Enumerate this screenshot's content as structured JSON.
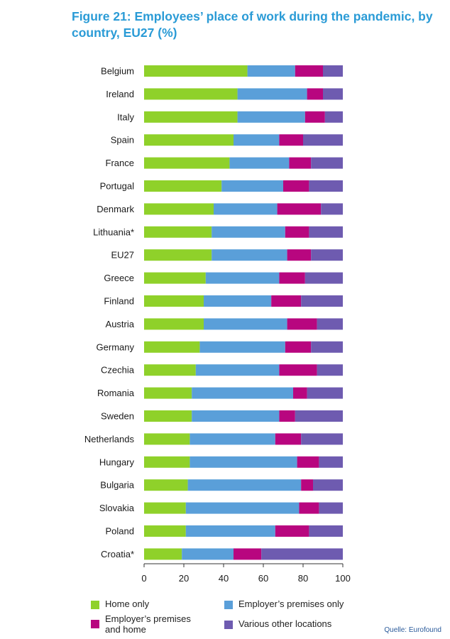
{
  "title": "Figure 21: Employees’ place of work during the pandemic, by country, EU27 (%)",
  "source": "Quelle: Eurofound",
  "colors": {
    "home_only": "#8fd12a",
    "employer_only": "#5a9fd9",
    "employer_and_home": "#b8067f",
    "other": "#6e5bb0",
    "axis": "#333333",
    "title": "#2a9bd6"
  },
  "legend": [
    {
      "key": "home_only",
      "label": "Home only"
    },
    {
      "key": "employer_only",
      "label": "Employer’s premises only"
    },
    {
      "key": "employer_and_home",
      "label": "Employer’s premises and home"
    },
    {
      "key": "other",
      "label": "Various other locations"
    }
  ],
  "chart_data": {
    "type": "bar",
    "orientation": "horizontal",
    "stacked": true,
    "title": "Figure 21: Employees’ place of work during the pandemic, by country, EU27 (%)",
    "xlim": [
      0,
      100
    ],
    "xticks": [
      0,
      20,
      40,
      60,
      80,
      100
    ],
    "grid": false,
    "legend_position": "bottom",
    "categories": [
      "Belgium",
      "Ireland",
      "Italy",
      "Spain",
      "France",
      "Portugal",
      "Denmark",
      "Lithuania*",
      "EU27",
      "Greece",
      "Finland",
      "Austria",
      "Germany",
      "Czechia",
      "Romania",
      "Sweden",
      "Netherlands",
      "Hungary",
      "Bulgaria",
      "Slovakia",
      "Poland",
      "Croatia*"
    ],
    "series": [
      {
        "name": "Home only",
        "key": "home_only",
        "values": [
          52,
          47,
          47,
          45,
          43,
          39,
          35,
          34,
          34,
          31,
          30,
          30,
          28,
          26,
          24,
          24,
          23,
          23,
          22,
          21,
          21,
          19
        ]
      },
      {
        "name": "Employer’s premises only",
        "key": "employer_only",
        "values": [
          24,
          35,
          34,
          23,
          30,
          31,
          32,
          37,
          38,
          37,
          34,
          42,
          43,
          42,
          51,
          44,
          43,
          54,
          57,
          57,
          45,
          26
        ]
      },
      {
        "name": "Employer’s premises and home",
        "key": "employer_and_home",
        "values": [
          14,
          8,
          10,
          12,
          11,
          13,
          22,
          12,
          12,
          13,
          15,
          15,
          13,
          19,
          7,
          8,
          13,
          11,
          6,
          10,
          17,
          14
        ]
      },
      {
        "name": "Various other locations",
        "key": "other",
        "values": [
          10,
          10,
          9,
          20,
          16,
          17,
          11,
          17,
          16,
          19,
          21,
          13,
          16,
          13,
          18,
          24,
          21,
          12,
          15,
          12,
          17,
          41
        ]
      }
    ]
  }
}
